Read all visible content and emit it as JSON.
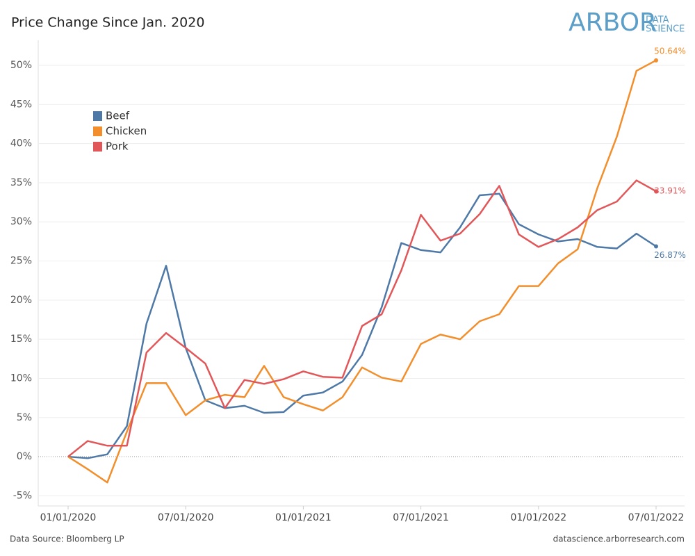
{
  "chart_data": {
    "type": "line",
    "title": "Price Change Since Jan. 2020",
    "logo": {
      "main": "ARBOR",
      "line1": "DATA",
      "line2": "SCIENCE"
    },
    "source": "Data Source: Bloomberg LP",
    "website": "datascience.arborresearch.com",
    "x": [
      "01/01/2020",
      "02/01/2020",
      "03/01/2020",
      "04/01/2020",
      "05/01/2020",
      "06/01/2020",
      "07/01/2020",
      "08/01/2020",
      "09/01/2020",
      "10/01/2020",
      "11/01/2020",
      "12/01/2020",
      "01/01/2021",
      "02/01/2021",
      "03/01/2021",
      "04/01/2021",
      "05/01/2021",
      "06/01/2021",
      "07/01/2021",
      "08/01/2021",
      "09/01/2021",
      "10/01/2021",
      "11/01/2021",
      "12/01/2021",
      "01/01/2022",
      "02/01/2022",
      "03/01/2022",
      "04/01/2022",
      "05/01/2022",
      "06/01/2022",
      "07/01/2022"
    ],
    "xticks": [
      "01/01/2020",
      "07/01/2020",
      "01/01/2021",
      "07/01/2021",
      "01/01/2022",
      "07/01/2022"
    ],
    "ylim": [
      -6.3,
      53.2
    ],
    "yticks": [
      {
        "value": -5,
        "label": "-5%"
      },
      {
        "value": 0,
        "label": "0%"
      },
      {
        "value": 5,
        "label": "5%"
      },
      {
        "value": 10,
        "label": "10%"
      },
      {
        "value": 15,
        "label": "15%"
      },
      {
        "value": 20,
        "label": "20%"
      },
      {
        "value": 25,
        "label": "25%"
      },
      {
        "value": 30,
        "label": "30%"
      },
      {
        "value": 35,
        "label": "35%"
      },
      {
        "value": 40,
        "label": "40%"
      },
      {
        "value": 45,
        "label": "45%"
      },
      {
        "value": 50,
        "label": "50%"
      }
    ],
    "grid": true,
    "legend": "upper left",
    "series": [
      {
        "name": "Beef",
        "color": "#4e79a7",
        "values": [
          0,
          -0.2,
          0.3,
          3.9,
          17.0,
          24.4,
          13.9,
          7.2,
          6.2,
          6.5,
          5.6,
          5.7,
          7.8,
          8.2,
          9.6,
          13.0,
          19.1,
          27.3,
          26.4,
          26.1,
          29.3,
          33.4,
          33.6,
          29.7,
          28.4,
          27.5,
          27.8,
          26.8,
          26.6,
          28.5,
          26.87
        ],
        "value_labels": [
          null,
          null,
          null,
          null,
          null,
          null,
          null,
          null,
          null,
          null,
          null,
          null,
          null,
          null,
          null,
          null,
          null,
          null,
          null,
          null,
          null,
          null,
          null,
          null,
          null,
          null,
          null,
          null,
          null,
          null,
          "26.87%"
        ]
      },
      {
        "name": "Chicken",
        "color": "#f28e2b",
        "values": [
          0,
          -1.6,
          -3.3,
          3.2,
          9.4,
          9.4,
          5.3,
          7.2,
          7.9,
          7.6,
          11.6,
          7.6,
          6.7,
          5.9,
          7.6,
          11.4,
          10.1,
          9.6,
          14.4,
          15.6,
          15.0,
          17.3,
          18.2,
          21.8,
          21.8,
          24.7,
          26.5,
          34.3,
          40.9,
          49.3,
          50.64
        ],
        "value_labels": [
          null,
          null,
          null,
          null,
          null,
          null,
          null,
          null,
          null,
          null,
          null,
          null,
          null,
          null,
          null,
          null,
          null,
          null,
          null,
          null,
          null,
          null,
          null,
          null,
          null,
          null,
          null,
          null,
          null,
          null,
          "50.64%"
        ]
      },
      {
        "name": "Pork",
        "color": "#e15759",
        "values": [
          0,
          2.0,
          1.4,
          1.4,
          13.3,
          15.8,
          13.9,
          11.9,
          6.2,
          9.8,
          9.3,
          9.9,
          10.9,
          10.2,
          10.1,
          16.7,
          18.2,
          23.8,
          30.9,
          27.6,
          28.5,
          31.0,
          34.6,
          28.4,
          26.8,
          27.8,
          29.3,
          31.5,
          32.6,
          35.3,
          33.91
        ],
        "value_labels": [
          null,
          null,
          null,
          null,
          null,
          null,
          null,
          null,
          null,
          null,
          null,
          null,
          null,
          null,
          null,
          null,
          null,
          null,
          null,
          null,
          null,
          null,
          null,
          null,
          null,
          null,
          null,
          null,
          null,
          null,
          "33.91%"
        ]
      }
    ]
  }
}
